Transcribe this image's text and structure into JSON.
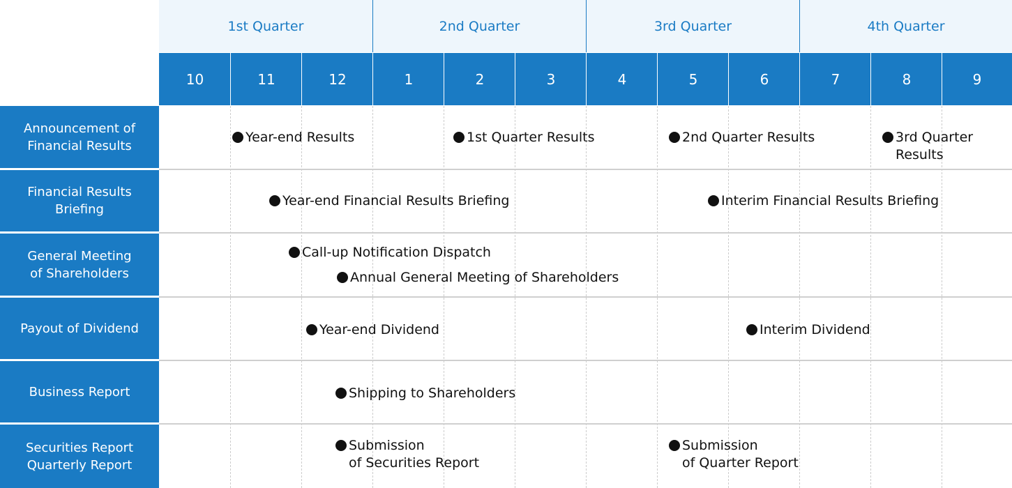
{
  "quarters": [
    "1st Quarter",
    "2nd Quarter",
    "3rd Quarter",
    "4th Quarter"
  ],
  "months": [
    "10",
    "11",
    "12",
    "1",
    "2",
    "3",
    "4",
    "5",
    "6",
    "7",
    "8",
    "9"
  ],
  "rows": [
    {
      "label": "Announcement of\nFinancial Results",
      "events": [
        {
          "text": "Year-end Results"
        },
        {
          "text": "1st Quarter Results"
        },
        {
          "text": "2nd Quarter Results"
        },
        {
          "text": "3rd Quarter\nResults"
        }
      ]
    },
    {
      "label": "Financial  Results\nBriefing",
      "events": [
        {
          "text": "Year-end Financial Results Briefing"
        },
        {
          "text": "Interim Financial Results Briefing"
        }
      ]
    },
    {
      "label": "General Meeting\nof Shareholders",
      "events": [
        {
          "text": "Call-up Notification Dispatch"
        },
        {
          "text": "Annual General Meeting of Shareholders"
        }
      ]
    },
    {
      "label": "Payout of Dividend",
      "events": [
        {
          "text": "Year-end Dividend"
        },
        {
          "text": "Interim Dividend"
        }
      ]
    },
    {
      "label": "Business Report",
      "events": [
        {
          "text": "Shipping to Shareholders"
        }
      ]
    },
    {
      "label": "Securities Report\nQuarterly Report",
      "events": [
        {
          "text": "Submission\nof Securities Report"
        },
        {
          "text": "Submission\nof Quarter Report"
        }
      ]
    }
  ],
  "colors": {
    "header_blue": "#1a7bc4",
    "quarter_bg": "#eef6fc",
    "row_divider": "#cfcfcf",
    "dot": "#111111"
  }
}
